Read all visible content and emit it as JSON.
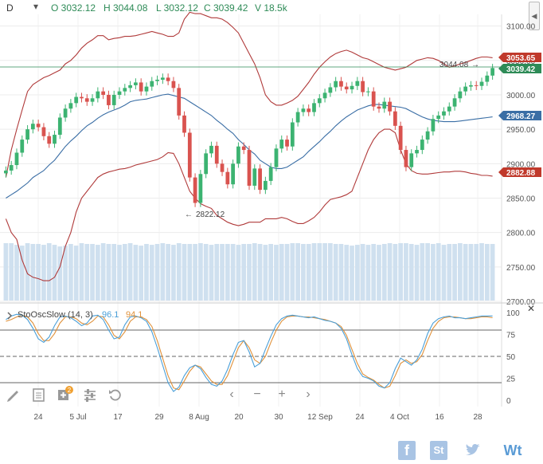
{
  "header": {
    "interval": "D",
    "open": "O 3032.12",
    "high": "H 3044.08",
    "low": "L 3032.12",
    "close": "C 3039.42",
    "volume": "V 18.5k"
  },
  "price_tags": {
    "upper_band": "3053.65",
    "last": "3039.42",
    "middle_band": "2968.27",
    "lower_band": "2882.88"
  },
  "annotations": {
    "high_marker": "3044.08",
    "low_marker": "2822.12"
  },
  "oscillator": {
    "title": "StoOscSlow (14, 3)",
    "k_value": "96.1",
    "d_value": "94.1"
  },
  "colors": {
    "up": "#3cb371",
    "down": "#d9534f",
    "bands": "#b03a3a",
    "sma": "#3a6ea5",
    "k": "#4a9fd8",
    "d": "#e0913a",
    "last_line": "#2e8b57",
    "volume": "#cfe0ef"
  },
  "icons": [
    "pencil-icon",
    "notes-icon",
    "add-indicator-icon",
    "settings-sliders-icon",
    "reset-icon",
    "scroll-left-icon",
    "zoom-out-icon",
    "zoom-in-icon",
    "scroll-right-icon",
    "facebook-icon",
    "stocktwits-icon",
    "twitter-icon",
    "wt-icon"
  ],
  "toolbar": {
    "badge": "2",
    "brand": "Wt"
  },
  "chart_data": {
    "type": "candlestick",
    "x_ticks": [
      "24",
      "5 Jul",
      "17",
      "29",
      "8 Aug",
      "20",
      "30",
      "12 Sep",
      "24",
      "4 Oct",
      "16",
      "28"
    ],
    "price_ticks": [
      "3100.00",
      "3050.00",
      "3000.00",
      "2950.00",
      "2900.00",
      "2850.00",
      "2800.00",
      "2750.00",
      "2700.00"
    ],
    "price_range": [
      2700,
      3110
    ],
    "osc_ticks": [
      "100",
      "75",
      "50",
      "25",
      "0"
    ],
    "osc_range": [
      0,
      100
    ],
    "closes": [
      2890,
      2898,
      2916,
      2935,
      2950,
      2958,
      2953,
      2940,
      2929,
      2942,
      2967,
      2980,
      2988,
      2997,
      2995,
      2990,
      2995,
      3005,
      3000,
      2985,
      3000,
      3005,
      3010,
      3014,
      3018,
      3005,
      3012,
      3020,
      3022,
      3025,
      3020,
      3010,
      2970,
      2945,
      2880,
      2843,
      2885,
      2915,
      2926,
      2900,
      2888,
      2870,
      2900,
      2925,
      2920,
      2868,
      2893,
      2862,
      2875,
      2895,
      2922,
      2935,
      2925,
      2960,
      2975,
      2980,
      2975,
      2988,
      2995,
      3003,
      3011,
      3020,
      3012,
      3008,
      3013,
      3020,
      3004,
      3005,
      2983,
      2980,
      2990,
      2976,
      2955,
      2920,
      2895,
      2915,
      2920,
      2935,
      2947,
      2965,
      2970,
      2976,
      2983,
      2995,
      3005,
      3012,
      3014,
      3013,
      3019,
      3028,
      3039
    ],
    "upper_band": [
      2880,
      2920,
      2950,
      2978,
      3005,
      3015,
      3020,
      3025,
      3028,
      3032,
      3036,
      3045,
      3050,
      3058,
      3068,
      3075,
      3080,
      3086,
      3086,
      3080,
      3082,
      3083,
      3085,
      3085,
      3086,
      3088,
      3090,
      3092,
      3090,
      3088,
      3085,
      3085,
      3090,
      3110,
      3120,
      3118,
      3118,
      3115,
      3112,
      3112,
      3110,
      3105,
      3098,
      3090,
      3075,
      3060,
      3045,
      3025,
      3000,
      2990,
      2985,
      2985,
      2988,
      2992,
      2998,
      3008,
      3018,
      3030,
      3040,
      3048,
      3055,
      3060,
      3063,
      3065,
      3062,
      3058,
      3054,
      3052,
      3048,
      3044,
      3040,
      3038,
      3036,
      3038,
      3040,
      3045,
      3050,
      3052,
      3054,
      3053,
      3050,
      3045,
      3040,
      3042,
      3045,
      3047,
      3050,
      3053,
      3055,
      3055,
      3054
    ],
    "sma": [
      2850,
      2855,
      2860,
      2866,
      2872,
      2880,
      2885,
      2890,
      2898,
      2905,
      2915,
      2925,
      2933,
      2940,
      2948,
      2955,
      2960,
      2966,
      2971,
      2975,
      2978,
      2981,
      2985,
      2990,
      2992,
      2993,
      2994,
      2996,
      2998,
      3000,
      3001,
      2999,
      2997,
      2995,
      2990,
      2985,
      2980,
      2975,
      2970,
      2963,
      2957,
      2950,
      2944,
      2935,
      2928,
      2920,
      2914,
      2905,
      2900,
      2895,
      2893,
      2893,
      2895,
      2900,
      2905,
      2910,
      2918,
      2925,
      2932,
      2940,
      2947,
      2955,
      2962,
      2968,
      2973,
      2978,
      2981,
      2984,
      2986,
      2986,
      2985,
      2984,
      2983,
      2982,
      2980,
      2976,
      2972,
      2968,
      2965,
      2963,
      2962,
      2961,
      2961,
      2961,
      2962,
      2963,
      2964,
      2965,
      2966,
      2967,
      2968
    ],
    "lower_band": [
      2820,
      2800,
      2790,
      2760,
      2740,
      2735,
      2733,
      2730,
      2730,
      2735,
      2750,
      2780,
      2800,
      2830,
      2850,
      2860,
      2870,
      2880,
      2885,
      2888,
      2890,
      2892,
      2893,
      2895,
      2898,
      2900,
      2902,
      2904,
      2906,
      2910,
      2916,
      2915,
      2900,
      2880,
      2860,
      2850,
      2842,
      2838,
      2835,
      2825,
      2820,
      2815,
      2812,
      2810,
      2812,
      2815,
      2815,
      2815,
      2820,
      2820,
      2820,
      2822,
      2820,
      2816,
      2813,
      2813,
      2817,
      2822,
      2830,
      2840,
      2848,
      2850,
      2852,
      2855,
      2860,
      2880,
      2900,
      2920,
      2935,
      2945,
      2950,
      2950,
      2945,
      2920,
      2900,
      2890,
      2886,
      2885,
      2885,
      2886,
      2887,
      2888,
      2888,
      2889,
      2889,
      2888,
      2886,
      2885,
      2883,
      2883,
      2882
    ],
    "volume": [
      70,
      70,
      68,
      67,
      70,
      69,
      69,
      68,
      70,
      68,
      66,
      67,
      69,
      67,
      70,
      69,
      69,
      68,
      70,
      69,
      69,
      68,
      69,
      70,
      68,
      67,
      69,
      68,
      69,
      70,
      69,
      68,
      70,
      69,
      69,
      69,
      70,
      69,
      68,
      69,
      69,
      69,
      69,
      68,
      69,
      69,
      70,
      69,
      68,
      69,
      68,
      69,
      69,
      70,
      70,
      69,
      69,
      70,
      70,
      70,
      70,
      69,
      69,
      68,
      67,
      68,
      69,
      68,
      69,
      68,
      69,
      70,
      69,
      70,
      70,
      69,
      68,
      70,
      70,
      69,
      70,
      68,
      69,
      69,
      70,
      69,
      69,
      69,
      70,
      69,
      69
    ],
    "stoch_k": [
      92,
      96,
      98,
      97,
      92,
      82,
      70,
      66,
      72,
      85,
      95,
      96,
      94,
      90,
      85,
      88,
      96,
      97,
      92,
      80,
      70,
      72,
      86,
      95,
      96,
      94,
      90,
      78,
      60,
      40,
      20,
      10,
      15,
      28,
      37,
      40,
      36,
      26,
      18,
      16,
      22,
      35,
      52,
      66,
      68,
      55,
      38,
      42,
      58,
      73,
      86,
      93,
      96,
      97,
      96,
      95,
      94,
      95,
      93,
      91,
      90,
      88,
      82,
      70,
      52,
      36,
      27,
      25,
      22,
      16,
      14,
      20,
      36,
      48,
      44,
      40,
      46,
      58,
      76,
      88,
      93,
      95,
      96,
      94,
      94,
      93,
      94,
      95,
      96,
      96,
      96.1
    ],
    "stoch_d": [
      90,
      92,
      95,
      97,
      95,
      88,
      76,
      68,
      68,
      76,
      88,
      95,
      95,
      93,
      88,
      86,
      90,
      96,
      95,
      86,
      74,
      70,
      78,
      90,
      95,
      95,
      92,
      84,
      68,
      48,
      28,
      14,
      12,
      22,
      33,
      40,
      38,
      30,
      22,
      18,
      18,
      28,
      44,
      60,
      68,
      60,
      46,
      42,
      50,
      66,
      80,
      90,
      95,
      96,
      96,
      95,
      95,
      94,
      93,
      92,
      90,
      88,
      84,
      74,
      58,
      42,
      30,
      26,
      23,
      18,
      14,
      16,
      28,
      42,
      46,
      42,
      44,
      52,
      68,
      82,
      90,
      94,
      95,
      95,
      94,
      93,
      93,
      94,
      95,
      95,
      94.1
    ],
    "stoch_levels": [
      80,
      50,
      20
    ]
  }
}
